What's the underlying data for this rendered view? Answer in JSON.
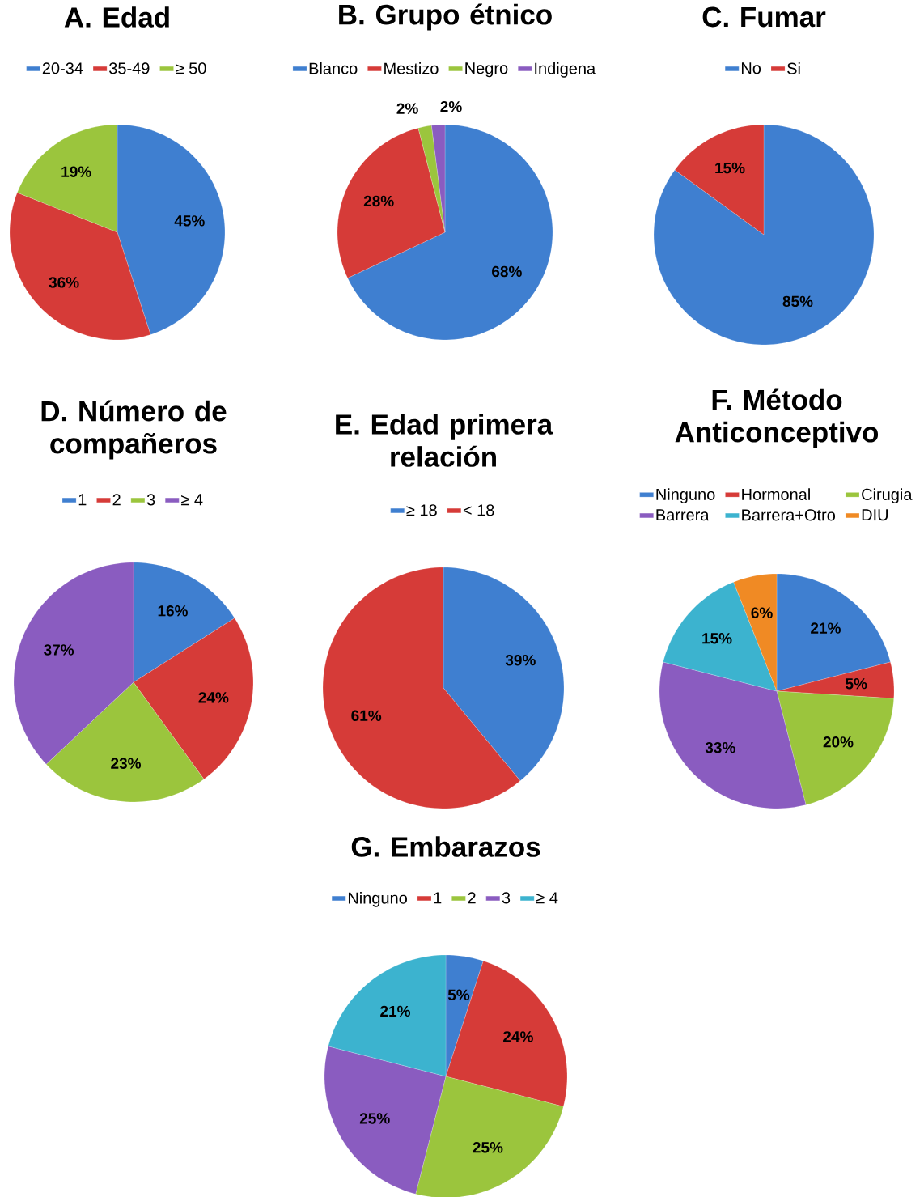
{
  "chart_data": [
    {
      "type": "pie",
      "title": "A. Edad",
      "categories": [
        "20-34",
        "35-49",
        "≥ 50"
      ],
      "values": [
        45,
        36,
        19
      ],
      "colors": [
        "#3f7fd0",
        "#d63b38",
        "#9bc53d"
      ],
      "value_labels": [
        "45%",
        "36%",
        "19%"
      ],
      "legend": "top"
    },
    {
      "type": "pie",
      "title": "B. Grupo étnico",
      "categories": [
        "Blanco",
        "Mestizo",
        "Negro",
        "Indigena"
      ],
      "values": [
        68,
        28,
        2,
        2
      ],
      "colors": [
        "#3f7fd0",
        "#d63b38",
        "#9bc53d",
        "#8a5cc0"
      ],
      "value_labels": [
        "68%",
        "28%",
        "2%",
        "2%"
      ],
      "legend": "top"
    },
    {
      "type": "pie",
      "title": "C. Fumar",
      "categories": [
        "No",
        "Si"
      ],
      "values": [
        85,
        15
      ],
      "colors": [
        "#3f7fd0",
        "#d63b38"
      ],
      "value_labels": [
        "85%",
        "15%"
      ],
      "legend": "top"
    },
    {
      "type": "pie",
      "title": "D. Número de compañeros",
      "categories": [
        "1",
        "2",
        "3",
        "≥ 4"
      ],
      "values": [
        16,
        24,
        23,
        37
      ],
      "colors": [
        "#3f7fd0",
        "#d63b38",
        "#9bc53d",
        "#8a5cc0"
      ],
      "value_labels": [
        "16%",
        "24%",
        "23%",
        "37%"
      ],
      "legend": "top"
    },
    {
      "type": "pie",
      "title": "E. Edad primera relación",
      "categories": [
        "≥ 18",
        "< 18"
      ],
      "values": [
        39,
        61
      ],
      "colors": [
        "#3f7fd0",
        "#d63b38"
      ],
      "value_labels": [
        "39%",
        "61%"
      ],
      "legend": "top"
    },
    {
      "type": "pie",
      "title": "F. Método Anticonceptivo",
      "categories": [
        "Ninguno",
        "Hormonal",
        "Cirugia",
        "Barrera",
        "Barrera+Otro",
        "DIU"
      ],
      "values": [
        21,
        5,
        20,
        33,
        15,
        6
      ],
      "colors": [
        "#3f7fd0",
        "#d63b38",
        "#9bc53d",
        "#8a5cc0",
        "#3cb3cf",
        "#f08a24"
      ],
      "value_labels": [
        "21%",
        "5%",
        "20%",
        "33%",
        "15%",
        "6%"
      ],
      "legend": "top"
    },
    {
      "type": "pie",
      "title": "G. Embarazos",
      "categories": [
        "Ninguno",
        "1",
        "2",
        "3",
        "≥ 4"
      ],
      "values": [
        5,
        24,
        25,
        25,
        21
      ],
      "colors": [
        "#3f7fd0",
        "#d63b38",
        "#9bc53d",
        "#8a5cc0",
        "#3cb3cf"
      ],
      "value_labels": [
        "5%",
        "24%",
        "25%",
        "25%",
        "21%"
      ],
      "legend": "top"
    }
  ]
}
